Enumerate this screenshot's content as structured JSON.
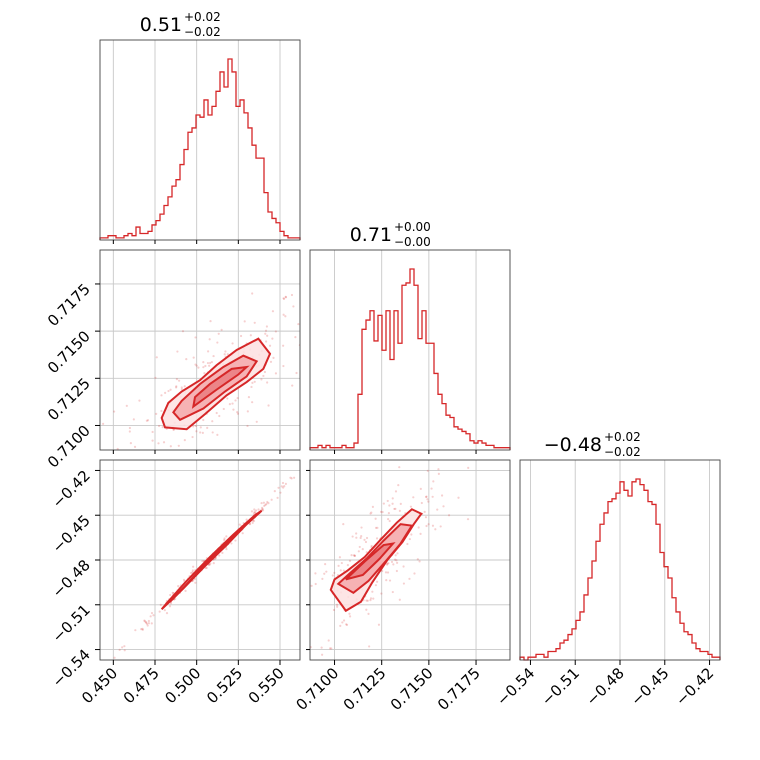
{
  "chart_data": {
    "type": "corner",
    "color": "#d62728",
    "parameters": [
      {
        "index": 0,
        "range": [
          0.442,
          0.562
        ],
        "ticks": [
          0.45,
          0.475,
          0.5,
          0.525,
          0.55
        ],
        "tick_labels": [
          "0.450",
          "0.475",
          "0.500",
          "0.525",
          "0.550"
        ],
        "title": {
          "median": "0.51",
          "plus": "+0.02",
          "minus": "−0.02"
        }
      },
      {
        "index": 1,
        "range": [
          0.7087,
          0.7193
        ],
        "ticks": [
          0.71,
          0.7125,
          0.715,
          0.7175
        ],
        "tick_labels": [
          "0.7100",
          "0.7125",
          "0.7150",
          "0.7175"
        ],
        "title": {
          "median": "0.71",
          "plus": "+0.00",
          "minus": "−0.00"
        }
      },
      {
        "index": 2,
        "range": [
          -0.547,
          -0.413
        ],
        "ticks": [
          -0.54,
          -0.51,
          -0.48,
          -0.45,
          -0.42
        ],
        "tick_labels": [
          "−0.54",
          "−0.51",
          "−0.48",
          "−0.45",
          "−0.42"
        ],
        "title": {
          "median": "−0.48",
          "plus": "+0.02",
          "minus": "−0.02"
        }
      }
    ],
    "histograms": [
      {
        "param": 0,
        "counts": [
          1,
          1,
          2,
          2,
          1,
          1,
          2,
          3,
          2,
          6,
          3,
          3,
          4,
          7,
          9,
          12,
          16,
          20,
          25,
          28,
          35,
          42,
          50,
          52,
          58,
          57,
          65,
          58,
          62,
          69,
          78,
          71,
          84,
          78,
          62,
          65,
          59,
          52,
          44,
          38,
          38,
          22,
          13,
          10,
          8,
          4,
          2,
          1,
          1,
          1
        ]
      },
      {
        "param": 1,
        "counts": [
          1,
          1,
          2,
          1,
          2,
          1,
          1,
          1,
          2,
          1,
          1,
          3,
          24,
          52,
          56,
          60,
          47,
          58,
          43,
          60,
          39,
          60,
          46,
          71,
          72,
          78,
          71,
          48,
          60,
          46,
          46,
          33,
          24,
          20,
          15,
          14,
          10,
          9,
          8,
          7,
          4,
          3,
          4,
          3,
          2,
          2,
          1,
          1,
          1,
          1
        ]
      },
      {
        "param": 2,
        "counts": [
          1,
          0,
          1,
          1,
          2,
          2,
          1,
          3,
          3,
          4,
          6,
          7,
          9,
          11,
          14,
          17,
          23,
          29,
          35,
          42,
          48,
          52,
          56,
          57,
          59,
          63,
          60,
          58,
          63,
          64,
          62,
          60,
          56,
          55,
          48,
          38,
          33,
          29,
          22,
          17,
          13,
          10,
          9,
          6,
          4,
          3,
          3,
          2,
          1,
          1
        ]
      }
    ],
    "kde_pairs": [
      {
        "x_param": 0,
        "y_param": 1,
        "contours": [
          [
            [
              0.481,
              0.7099
            ],
            [
              0.494,
              0.7098
            ],
            [
              0.505,
              0.7106
            ],
            [
              0.518,
              0.7116
            ],
            [
              0.53,
              0.7123
            ],
            [
              0.54,
              0.713
            ],
            [
              0.544,
              0.7138
            ],
            [
              0.537,
              0.7146
            ],
            [
              0.524,
              0.714
            ],
            [
              0.512,
              0.7132
            ],
            [
              0.502,
              0.7124
            ],
            [
              0.491,
              0.7118
            ],
            [
              0.483,
              0.7112
            ],
            [
              0.479,
              0.7104
            ]
          ],
          [
            [
              0.49,
              0.7103
            ],
            [
              0.504,
              0.7109
            ],
            [
              0.517,
              0.7118
            ],
            [
              0.53,
              0.7126
            ],
            [
              0.536,
              0.7134
            ],
            [
              0.528,
              0.7137
            ],
            [
              0.516,
              0.7131
            ],
            [
              0.502,
              0.7122
            ],
            [
              0.491,
              0.7113
            ],
            [
              0.486,
              0.7107
            ]
          ],
          [
            [
              0.498,
              0.711
            ],
            [
              0.512,
              0.7119
            ],
            [
              0.525,
              0.7127
            ],
            [
              0.53,
              0.7131
            ],
            [
              0.521,
              0.713
            ],
            [
              0.508,
              0.7122
            ],
            [
              0.499,
              0.7115
            ]
          ]
        ]
      },
      {
        "x_param": 0,
        "y_param": 2,
        "contours": [
          [
            [
              0.479,
              -0.513
            ],
            [
              0.492,
              -0.499
            ],
            [
              0.505,
              -0.484
            ],
            [
              0.518,
              -0.47
            ],
            [
              0.53,
              -0.456
            ],
            [
              0.539,
              -0.447
            ],
            [
              0.535,
              -0.45
            ],
            [
              0.522,
              -0.463
            ],
            [
              0.508,
              -0.478
            ],
            [
              0.494,
              -0.494
            ],
            [
              0.482,
              -0.509
            ]
          ],
          [
            [
              0.484,
              -0.508
            ],
            [
              0.498,
              -0.492
            ],
            [
              0.512,
              -0.476
            ],
            [
              0.526,
              -0.46
            ],
            [
              0.533,
              -0.453
            ],
            [
              0.52,
              -0.466
            ],
            [
              0.505,
              -0.483
            ],
            [
              0.49,
              -0.501
            ]
          ]
        ]
      },
      {
        "x_param": 1,
        "y_param": 2,
        "contours": [
          [
            [
              0.7098,
              -0.5
            ],
            [
              0.7106,
              -0.514
            ],
            [
              0.7114,
              -0.508
            ],
            [
              0.712,
              -0.495
            ],
            [
              0.7128,
              -0.48
            ],
            [
              0.7136,
              -0.468
            ],
            [
              0.7142,
              -0.456
            ],
            [
              0.7146,
              -0.449
            ],
            [
              0.7141,
              -0.446
            ],
            [
              0.7133,
              -0.455
            ],
            [
              0.7124,
              -0.467
            ],
            [
              0.7116,
              -0.478
            ],
            [
              0.7107,
              -0.487
            ],
            [
              0.71,
              -0.493
            ]
          ],
          [
            [
              0.7102,
              -0.496
            ],
            [
              0.711,
              -0.502
            ],
            [
              0.7118,
              -0.494
            ],
            [
              0.7127,
              -0.481
            ],
            [
              0.7135,
              -0.469
            ],
            [
              0.7141,
              -0.457
            ],
            [
              0.7135,
              -0.456
            ],
            [
              0.7126,
              -0.467
            ],
            [
              0.7117,
              -0.479
            ],
            [
              0.7108,
              -0.489
            ]
          ],
          [
            [
              0.7106,
              -0.493
            ],
            [
              0.7115,
              -0.49
            ],
            [
              0.7124,
              -0.479
            ],
            [
              0.7131,
              -0.469
            ],
            [
              0.7126,
              -0.47
            ],
            [
              0.7116,
              -0.481
            ]
          ]
        ]
      }
    ],
    "grid": true
  }
}
